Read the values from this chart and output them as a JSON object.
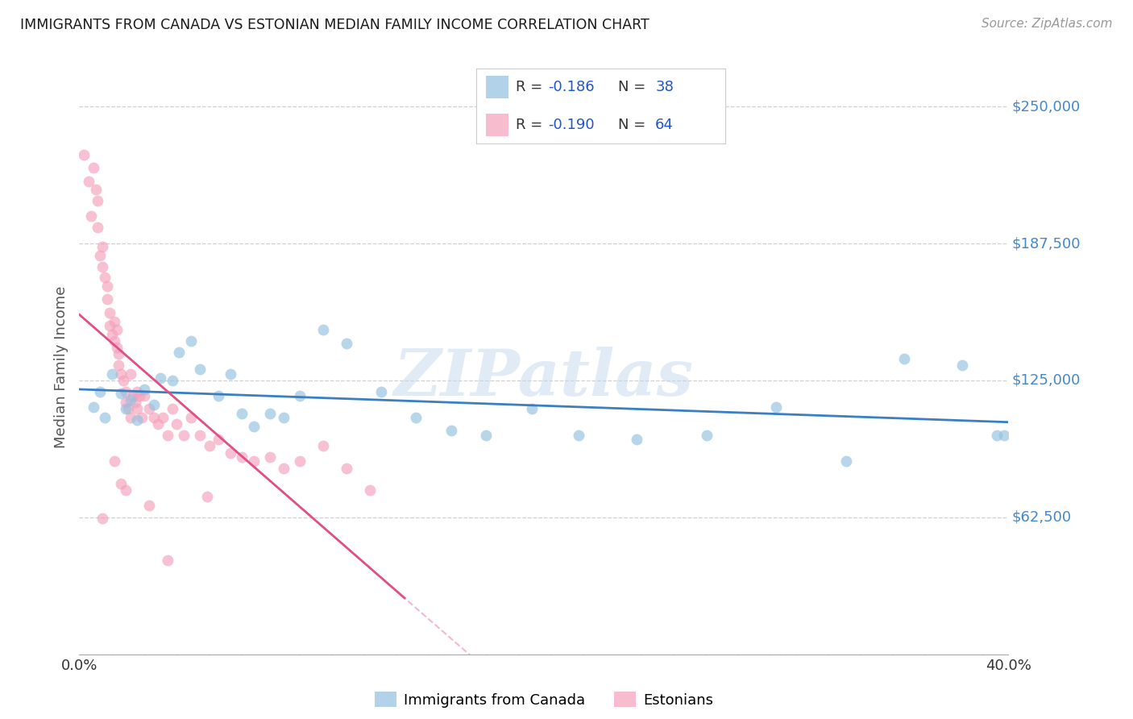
{
  "title": "IMMIGRANTS FROM CANADA VS ESTONIAN MEDIAN FAMILY INCOME CORRELATION CHART",
  "source": "Source: ZipAtlas.com",
  "ylabel": "Median Family Income",
  "xlim": [
    0.0,
    0.4
  ],
  "ylim": [
    0,
    262500
  ],
  "yticks": [
    0,
    62500,
    125000,
    187500,
    250000
  ],
  "ytick_labels_right": [
    "",
    "$62,500",
    "$125,000",
    "$187,500",
    "$250,000"
  ],
  "xtick_positions": [
    0.0,
    0.05,
    0.1,
    0.15,
    0.2,
    0.25,
    0.3,
    0.35,
    0.4
  ],
  "xtick_labels": [
    "0.0%",
    "",
    "",
    "",
    "",
    "",
    "",
    "",
    "40.0%"
  ],
  "blue_color": "#92c0e0",
  "pink_color": "#f4a0ba",
  "trend_blue_color": "#3a7fc1",
  "trend_pink_color": "#e05080",
  "r_n_color": "#2255cc",
  "text_color": "#333333",
  "right_label_color": "#4488cc",
  "source_color": "#999999",
  "watermark_text": "ZIPatlas",
  "watermark_color": "#c5d8ee",
  "background_color": "#ffffff",
  "blue_label": "Immigrants from Canada",
  "pink_label": "Estonians",
  "blue_scatter_x": [
    0.006,
    0.009,
    0.011,
    0.014,
    0.018,
    0.02,
    0.022,
    0.025,
    0.028,
    0.032,
    0.035,
    0.04,
    0.043,
    0.048,
    0.052,
    0.06,
    0.065,
    0.07,
    0.075,
    0.082,
    0.088,
    0.095,
    0.105,
    0.115,
    0.13,
    0.145,
    0.16,
    0.175,
    0.195,
    0.215,
    0.24,
    0.27,
    0.3,
    0.33,
    0.355,
    0.38,
    0.395,
    0.398
  ],
  "blue_scatter_y": [
    113000,
    120000,
    108000,
    128000,
    119000,
    112000,
    116000,
    107000,
    121000,
    114000,
    126000,
    125000,
    138000,
    143000,
    130000,
    118000,
    128000,
    110000,
    104000,
    110000,
    108000,
    118000,
    148000,
    142000,
    120000,
    108000,
    102000,
    100000,
    112000,
    100000,
    98000,
    100000,
    113000,
    88000,
    135000,
    132000,
    100000,
    100000
  ],
  "pink_scatter_x": [
    0.002,
    0.004,
    0.005,
    0.006,
    0.007,
    0.008,
    0.008,
    0.009,
    0.01,
    0.01,
    0.011,
    0.012,
    0.012,
    0.013,
    0.013,
    0.014,
    0.015,
    0.015,
    0.016,
    0.016,
    0.017,
    0.017,
    0.018,
    0.019,
    0.02,
    0.02,
    0.021,
    0.022,
    0.023,
    0.024,
    0.025,
    0.026,
    0.027,
    0.028,
    0.03,
    0.032,
    0.034,
    0.036,
    0.038,
    0.04,
    0.042,
    0.045,
    0.048,
    0.052,
    0.056,
    0.06,
    0.065,
    0.07,
    0.075,
    0.082,
    0.088,
    0.095,
    0.105,
    0.115,
    0.125,
    0.055,
    0.03,
    0.018,
    0.01,
    0.022,
    0.015,
    0.038,
    0.02,
    0.025
  ],
  "pink_scatter_y": [
    228000,
    216000,
    200000,
    222000,
    212000,
    207000,
    195000,
    182000,
    177000,
    186000,
    172000,
    168000,
    162000,
    156000,
    150000,
    146000,
    143000,
    152000,
    148000,
    140000,
    137000,
    132000,
    128000,
    125000,
    120000,
    115000,
    112000,
    128000,
    118000,
    115000,
    112000,
    118000,
    108000,
    118000,
    112000,
    108000,
    105000,
    108000,
    100000,
    112000,
    105000,
    100000,
    108000,
    100000,
    95000,
    98000,
    92000,
    90000,
    88000,
    90000,
    85000,
    88000,
    95000,
    85000,
    75000,
    72000,
    68000,
    78000,
    62000,
    108000,
    88000,
    43000,
    75000,
    120000
  ]
}
